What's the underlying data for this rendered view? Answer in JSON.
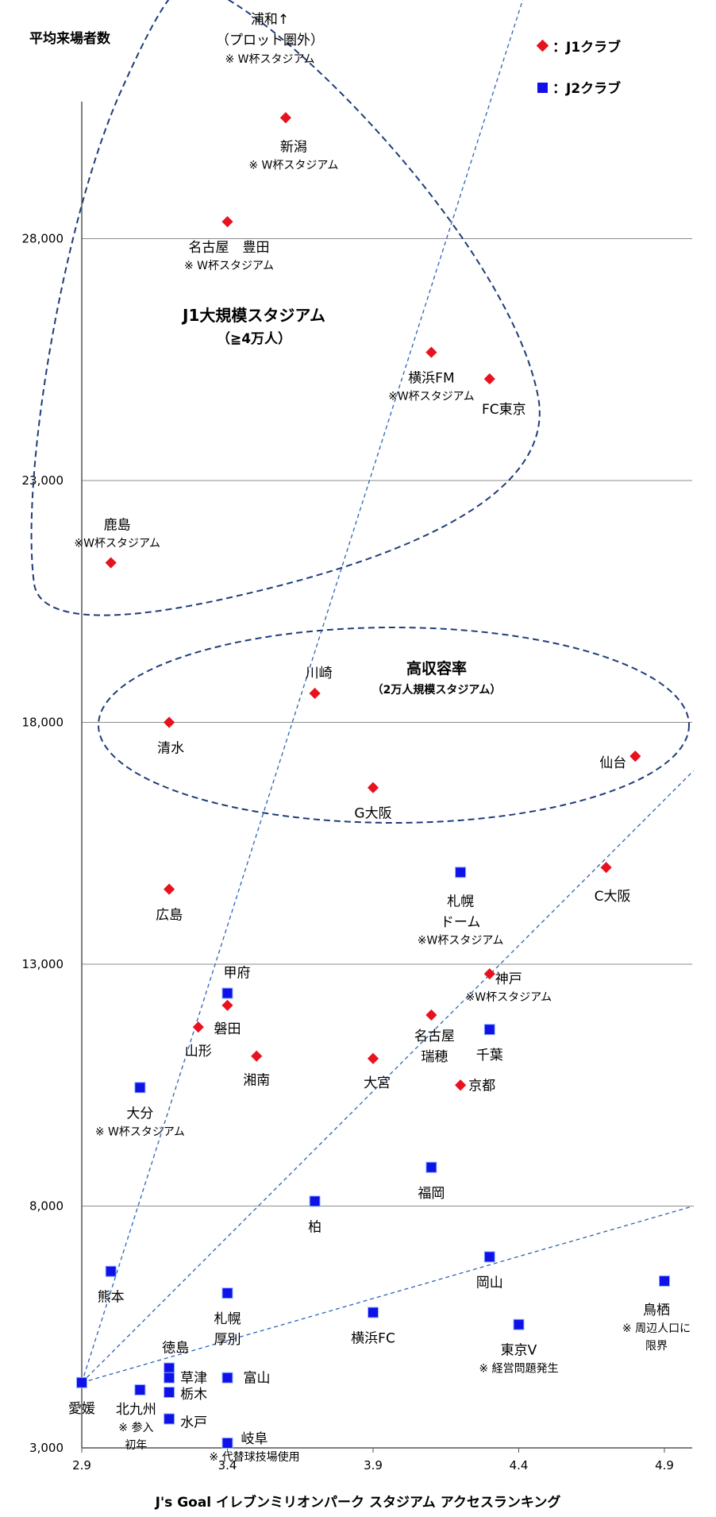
{
  "chart_data": {
    "type": "scatter",
    "ylabel": "平均来場者数",
    "xlabel": "J's Goal イレブンミリオンパーク スタジアム アクセスランキング",
    "xlim": [
      2.9,
      5.0
    ],
    "ylim": [
      3000,
      35000
    ],
    "x_ticks": [
      "2.9",
      "3.4",
      "3.9",
      "4.4",
      "4.9"
    ],
    "y_ticks": [
      "3,000",
      "8,000",
      "13,000",
      "18,000",
      "23,000",
      "28,000"
    ],
    "gridlines": "horizontal",
    "legend_position": "top-right",
    "legend": [
      {
        "series": "J1",
        "label": "：J1クラブ",
        "color": "#e8121e",
        "marker": "diamond"
      },
      {
        "series": "J2",
        "label": "：J2クラブ",
        "color": "#1010e8",
        "marker": "square"
      }
    ],
    "points": [
      {
        "series": "J1",
        "x": 3.6,
        "y": 30500,
        "label": "新潟",
        "note": "※ W杯スタジアム"
      },
      {
        "series": "J1",
        "x": 3.4,
        "y": 28350,
        "label": "名古屋 豊田",
        "note": "※ W杯スタジアム"
      },
      {
        "series": "J1",
        "x": 4.1,
        "y": 25650,
        "label": "横浜FM",
        "note": "※W杯スタジアム"
      },
      {
        "series": "J1",
        "x": 4.3,
        "y": 25100,
        "label": "FC東京",
        "note": ""
      },
      {
        "series": "J1",
        "x": 3.0,
        "y": 21300,
        "label": "鹿島",
        "note": "※W杯スタジアム"
      },
      {
        "series": "J1",
        "x": 3.7,
        "y": 18600,
        "label": "川崎",
        "note": ""
      },
      {
        "series": "J1",
        "x": 3.2,
        "y": 18000,
        "label": "清水",
        "note": ""
      },
      {
        "series": "J1",
        "x": 4.8,
        "y": 17300,
        "label": "仙台",
        "note": ""
      },
      {
        "series": "J1",
        "x": 3.9,
        "y": 16650,
        "label": "G大阪",
        "note": ""
      },
      {
        "series": "J1",
        "x": 4.7,
        "y": 15000,
        "label": "C大阪",
        "note": ""
      },
      {
        "series": "J1",
        "x": 3.2,
        "y": 14550,
        "label": "広島",
        "note": ""
      },
      {
        "series": "J1",
        "x": 4.3,
        "y": 12800,
        "label": "神戸",
        "note": "※W杯スタジアム"
      },
      {
        "series": "J1",
        "x": 3.4,
        "y": 12150,
        "label": "磐田",
        "note": ""
      },
      {
        "series": "J1",
        "x": 4.1,
        "y": 11950,
        "label": "名古屋 瑞穂",
        "note": ""
      },
      {
        "series": "J1",
        "x": 3.3,
        "y": 11700,
        "label": "山形",
        "note": ""
      },
      {
        "series": "J1",
        "x": 3.5,
        "y": 11100,
        "label": "湘南",
        "note": ""
      },
      {
        "series": "J1",
        "x": 3.9,
        "y": 11050,
        "label": "大宮",
        "note": ""
      },
      {
        "series": "J1",
        "x": 4.2,
        "y": 10500,
        "label": "京都",
        "note": ""
      },
      {
        "series": "J2",
        "x": 4.2,
        "y": 14900,
        "label": "札幌 ドーム",
        "note": "※W杯スタジアム"
      },
      {
        "series": "J2",
        "x": 3.4,
        "y": 12400,
        "label": "甲府",
        "note": ""
      },
      {
        "series": "J2",
        "x": 4.3,
        "y": 11650,
        "label": "千葉",
        "note": ""
      },
      {
        "series": "J2",
        "x": 3.1,
        "y": 10450,
        "label": "大分",
        "note": "※ W杯スタジアム"
      },
      {
        "series": "J2",
        "x": 4.1,
        "y": 8800,
        "label": "福岡",
        "note": ""
      },
      {
        "series": "J2",
        "x": 3.7,
        "y": 8100,
        "label": "柏",
        "note": ""
      },
      {
        "series": "J2",
        "x": 4.3,
        "y": 6950,
        "label": "岡山",
        "note": ""
      },
      {
        "series": "J2",
        "x": 3.0,
        "y": 6650,
        "label": "熊本",
        "note": ""
      },
      {
        "series": "J2",
        "x": 4.9,
        "y": 6450,
        "label": "鳥栖",
        "note": "※ 周辺人口に 限界"
      },
      {
        "series": "J2",
        "x": 3.4,
        "y": 6200,
        "label": "札幌 厚別",
        "note": ""
      },
      {
        "series": "J2",
        "x": 3.9,
        "y": 5800,
        "label": "横浜FC",
        "note": ""
      },
      {
        "series": "J2",
        "x": 4.4,
        "y": 5550,
        "label": "東京V",
        "note": "※ 経営問題発生"
      },
      {
        "series": "J2",
        "x": 3.2,
        "y": 4650,
        "label": "徳島",
        "note": ""
      },
      {
        "series": "J2",
        "x": 3.2,
        "y": 4450,
        "label": "草津",
        "note": ""
      },
      {
        "series": "J2",
        "x": 3.4,
        "y": 4450,
        "label": "富山",
        "note": ""
      },
      {
        "series": "J2",
        "x": 2.9,
        "y": 4350,
        "label": "愛媛",
        "note": ""
      },
      {
        "series": "J2",
        "x": 3.1,
        "y": 4200,
        "label": "北九州",
        "note": "※ 参入 初年"
      },
      {
        "series": "J2",
        "x": 3.2,
        "y": 4150,
        "label": "栃木",
        "note": ""
      },
      {
        "series": "J2",
        "x": 3.2,
        "y": 3600,
        "label": "水戸",
        "note": ""
      },
      {
        "series": "J2",
        "x": 3.4,
        "y": 3100,
        "label": "岐阜",
        "note": "※ 代替球技場使用"
      }
    ],
    "annotations": {
      "urawa": {
        "line1": "浦和↑",
        "line2": "（プロット圏外）",
        "line3": "※ W杯スタジアム"
      },
      "zone_large": {
        "line1": "J1大規模スタジアム",
        "line2": "（≧4万人）"
      },
      "zone_high": {
        "line1": "高収容率",
        "line2": "（2万人規模スタジアム）"
      }
    },
    "trend_lines": [
      {
        "from": [
          2.9,
          4350
        ],
        "to": [
          4.47,
          34000
        ]
      },
      {
        "from": [
          2.9,
          4350
        ],
        "to": [
          5.0,
          17000
        ]
      },
      {
        "from": [
          2.9,
          4350
        ],
        "to": [
          5.0,
          8000
        ]
      }
    ]
  }
}
